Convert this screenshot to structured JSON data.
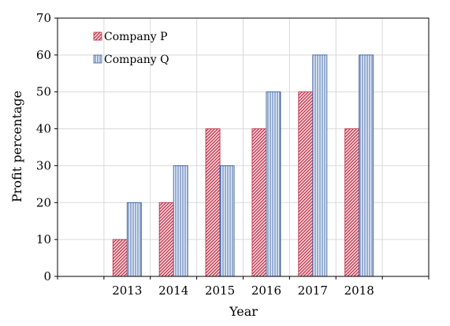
{
  "chart_data": {
    "type": "bar",
    "title": "",
    "xlabel": "Year",
    "ylabel": "Profit percentage",
    "categories": [
      "",
      "2013",
      "2014",
      "2015",
      "2016",
      "2017",
      "2018",
      ""
    ],
    "series": [
      {
        "name": "Company P",
        "values": [
          null,
          10,
          20,
          40,
          40,
          50,
          40,
          null
        ],
        "color": "#c0304a",
        "fill": "#f4c8cf",
        "pattern": "diagonal"
      },
      {
        "name": "Company Q",
        "values": [
          null,
          20,
          30,
          30,
          50,
          60,
          60,
          null
        ],
        "color": "#3a5f9a",
        "fill": "#dbe6f4",
        "pattern": "vertical"
      }
    ],
    "ylim": [
      0,
      70
    ],
    "yticks": [
      0,
      10,
      20,
      30,
      40,
      50,
      60,
      70
    ],
    "grid": true,
    "legend": "top-left"
  }
}
